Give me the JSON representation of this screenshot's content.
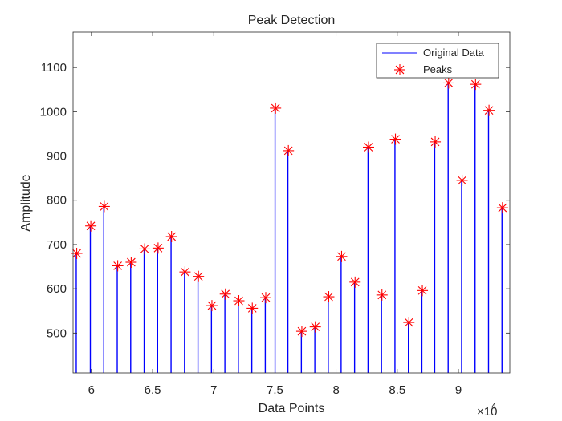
{
  "chart_data": {
    "type": "line",
    "title": "Peak Detection",
    "xlabel": "Data Points",
    "ylabel": "Amplitude",
    "x_exponent_label": "×10",
    "x_exponent_power": "4",
    "xlim": [
      58500,
      94200
    ],
    "ylim": [
      410,
      1180
    ],
    "x_ticks": [
      60000,
      65000,
      70000,
      75000,
      80000,
      85000,
      90000
    ],
    "x_tick_labels": [
      "6",
      "6.5",
      "7",
      "7.5",
      "8",
      "8.5",
      "9"
    ],
    "y_ticks": [
      500,
      600,
      700,
      800,
      900,
      1000,
      1100
    ],
    "y_tick_labels": [
      "500",
      "600",
      "700",
      "800",
      "900",
      "1000",
      "1100"
    ],
    "grid": false,
    "legend_position": "top-right",
    "colors": {
      "data": "#0000ff",
      "peaks": "#ff0000",
      "axis": "#262626"
    },
    "series": [
      {
        "name": "Original Data",
        "style": "line",
        "x": [
          58800,
          59950,
          61050,
          62150,
          63250,
          64350,
          65450,
          66550,
          67650,
          68750,
          69850,
          70950,
          72050,
          73150,
          74250,
          75050,
          76100,
          77200,
          78300,
          79400,
          80450,
          81550,
          82650,
          83750,
          84850,
          85950,
          87050,
          88100,
          89200,
          90300,
          91400,
          92500,
          93600
        ],
        "values": [
          680,
          742,
          786,
          652,
          660,
          690,
          692,
          718,
          638,
          628,
          562,
          588,
          573,
          556,
          580,
          1008,
          912,
          504,
          514,
          582,
          673,
          615,
          920,
          586,
          938,
          524,
          596,
          932,
          1065,
          845,
          1062,
          1003,
          783
        ]
      },
      {
        "name": "Peaks",
        "style": "marker",
        "x": [
          58800,
          59950,
          61050,
          62150,
          63250,
          64350,
          65450,
          66550,
          67650,
          68750,
          69850,
          70950,
          72050,
          73150,
          74250,
          75050,
          76100,
          77200,
          78300,
          79400,
          80450,
          81550,
          82650,
          83750,
          84850,
          85950,
          87050,
          88100,
          89200,
          90300,
          91400,
          92500,
          93600
        ],
        "values": [
          680,
          742,
          786,
          652,
          660,
          690,
          692,
          718,
          638,
          628,
          562,
          588,
          573,
          556,
          580,
          1008,
          912,
          504,
          514,
          582,
          673,
          615,
          920,
          586,
          938,
          524,
          596,
          932,
          1065,
          845,
          1062,
          1003,
          783
        ]
      }
    ]
  }
}
